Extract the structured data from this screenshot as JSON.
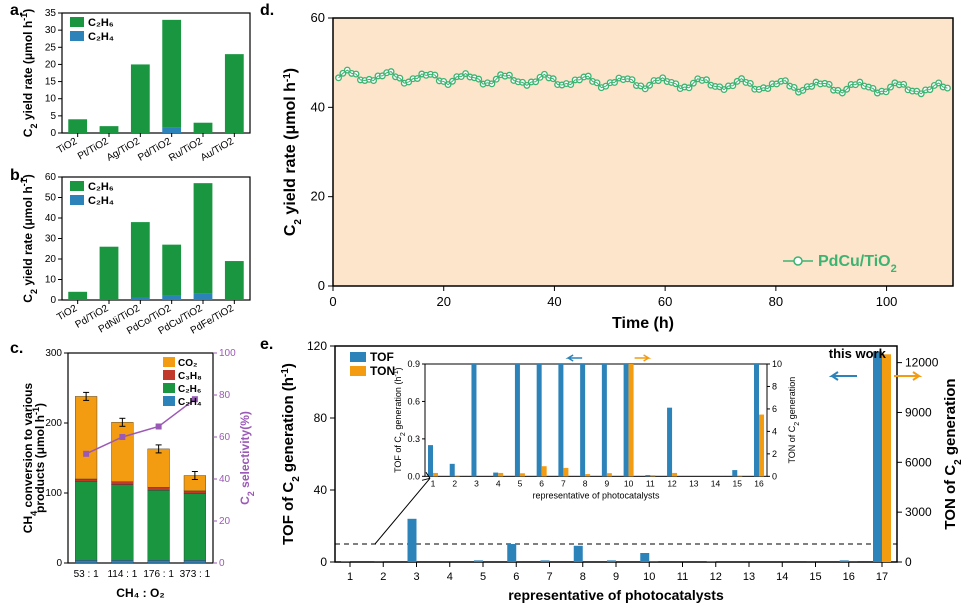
{
  "panelA": {
    "label": "a.",
    "type": "bar",
    "ylabel_html": "C<tspan baseline-shift='sub' font-size='9'>2</tspan> yield rate (μmol h<tspan baseline-shift='super' font-size='9'>-1</tspan>)",
    "ylim": [
      0,
      35
    ],
    "ytick_step": 5,
    "legend": [
      "C₂H₆",
      "C₂H₄"
    ],
    "legend_colors": [
      "#1a9641",
      "#2b83ba"
    ],
    "categories": [
      "TiO2",
      "Pt/TiO2",
      "Ag/TiO2",
      "Pd/TiO2",
      "Ru/TiO2",
      "Au/TiO2"
    ],
    "c2h6": [
      4,
      2,
      20,
      31.5,
      3,
      23
    ],
    "c2h4": [
      0,
      0,
      0,
      1.5,
      0,
      0
    ],
    "bar_width": 0.6
  },
  "panelB": {
    "label": "b.",
    "type": "bar",
    "ylim": [
      0,
      60
    ],
    "ytick_step": 10,
    "legend": [
      "C₂H₆",
      "C₂H₄"
    ],
    "legend_colors": [
      "#1a9641",
      "#2b83ba"
    ],
    "categories": [
      "TiO2",
      "Pd/TiO2",
      "PdNi/TiO2",
      "PdCo/TiO2",
      "PdCu/TiO2",
      "PdFe/TiO2"
    ],
    "c2h6": [
      4,
      26,
      37,
      25,
      54,
      19
    ],
    "c2h4": [
      0,
      0,
      1,
      2,
      3,
      0
    ],
    "bar_width": 0.6
  },
  "panelC": {
    "label": "c.",
    "type": "stacked-bar+line",
    "ylabel_left_html": "CH<tspan baseline-shift='sub' font-size='9'>4</tspan> conversion to various<tspan x='0' dy='12'>products (μmol h</tspan><tspan baseline-shift='super' font-size='9'>-1</tspan>)",
    "ylabel_right_html": "C<tspan baseline-shift='sub' font-size='9'>2</tspan> selectivity(%)",
    "xlabel": "CH₄ : O₂",
    "ylim": [
      0,
      300
    ],
    "ytick_step": 100,
    "ylim2": [
      0,
      100
    ],
    "ytick2_step": 20,
    "categories": [
      "53 : 1",
      "114 : 1",
      "176 : 1",
      "373 : 1"
    ],
    "series": {
      "CO2": {
        "color": "#f39c12",
        "vals": [
          118,
          85,
          55,
          22
        ]
      },
      "C3H8": {
        "color": "#c0392b",
        "vals": [
          4,
          4,
          4,
          4
        ]
      },
      "C2H6": {
        "color": "#1a9641",
        "vals": [
          112,
          108,
          100,
          95
        ]
      },
      "C2H4": {
        "color": "#2b83ba",
        "vals": [
          4,
          4,
          4,
          4
        ]
      }
    },
    "selectivity": {
      "color": "#9b59b6",
      "vals": [
        52,
        60,
        65,
        78
      ]
    },
    "legend_order": [
      "CO2",
      "C3H8",
      "C2H6",
      "C2H4"
    ]
  },
  "panelD": {
    "label": "d.",
    "type": "scatter-line",
    "ylabel_html": "C<tspan baseline-shift='sub' font-size='10'>2</tspan> yield rate (μmol h<tspan baseline-shift='super' font-size='10'>-1</tspan>)",
    "xlabel": "Time (h)",
    "ylim": [
      0,
      60
    ],
    "ytick_step": 20,
    "xlim": [
      0,
      112
    ],
    "xtick_step": 20,
    "bg_color": "#fde5cc",
    "series_label": "PdCu/TiO₂",
    "marker_color": "#3cb371",
    "n_points": 140,
    "y_base": 47,
    "y_end": 44,
    "jitter": 1.0
  },
  "panelE": {
    "label": "e.",
    "type": "grouped-bar-dual-axis",
    "ylabel_left_html": "TOF of C<tspan baseline-shift='sub' font-size='10'>2</tspan> generation (h<tspan baseline-shift='super' font-size='10'>-1</tspan>)",
    "ylabel_right_html": "TON of C<tspan baseline-shift='sub' font-size='10'>2</tspan> generation",
    "xlabel": "representative of photocatalysts",
    "ylim_left": [
      0,
      120
    ],
    "ytick_left_step": 40,
    "ylim_right": [
      0,
      13000
    ],
    "yticks_right": [
      0,
      3000,
      6000,
      9000,
      12000
    ],
    "x_range": [
      1,
      17
    ],
    "legend": [
      "TOF",
      "TON"
    ],
    "legend_colors": [
      "#2b83ba",
      "#f39c12"
    ],
    "bars": [
      {
        "x": 1,
        "tof": 0.25,
        "ton": 0.3
      },
      {
        "x": 2,
        "tof": 0.1,
        "ton": 0.05
      },
      {
        "x": 3,
        "tof": 24,
        "ton": 0
      },
      {
        "x": 4,
        "tof": 0.03,
        "ton": 0.3
      },
      {
        "x": 5,
        "tof": 0.9,
        "ton": 0.27
      },
      {
        "x": 6,
        "tof": 10,
        "ton": 0.9
      },
      {
        "x": 7,
        "tof": 0.9,
        "ton": 0.75
      },
      {
        "x": 8,
        "tof": 9,
        "ton": 0.2
      },
      {
        "x": 9,
        "tof": 0.9,
        "ton": 0.28
      },
      {
        "x": 10,
        "tof": 5,
        "ton": 10
      },
      {
        "x": 11,
        "tof": 0.01,
        "ton": 0.1
      },
      {
        "x": 12,
        "tof": 0.55,
        "ton": 0.3
      },
      {
        "x": 13,
        "tof": 0,
        "ton": 0
      },
      {
        "x": 14,
        "tof": 0,
        "ton": 0
      },
      {
        "x": 15,
        "tof": 0.05,
        "ton": 0.07
      },
      {
        "x": 16,
        "tof": 0.9,
        "ton": 5.5
      },
      {
        "x": 17,
        "tof": 117,
        "ton": 12500
      }
    ],
    "dashed_y": 10,
    "this_work_label": "this work",
    "inset": {
      "ylim_left": [
        0,
        0.9
      ],
      "ytick_left_step": 0.3,
      "ylim_right": [
        0,
        10
      ],
      "ytick_right_step": 2,
      "x_range": [
        1,
        16
      ]
    }
  },
  "colors": {
    "axis": "#000000",
    "tof": "#2b83ba",
    "ton": "#f39c12",
    "c2h6": "#1a9641",
    "c2h4": "#2b83ba",
    "selectivity": "#9b59b6"
  }
}
